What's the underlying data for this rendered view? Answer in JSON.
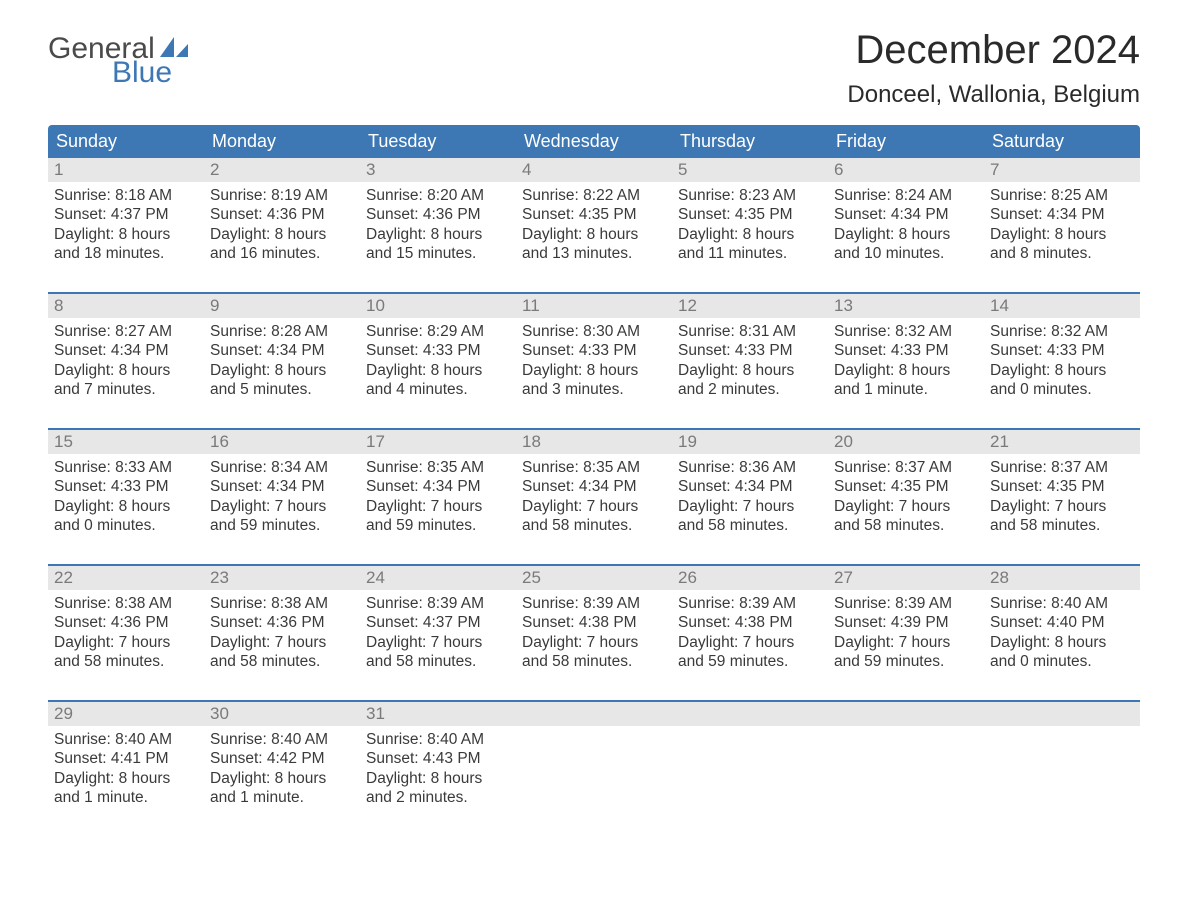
{
  "brand": {
    "word1": "General",
    "word2": "Blue",
    "logo_color": "#3d78b5"
  },
  "title": "December 2024",
  "location": "Donceel, Wallonia, Belgium",
  "colors": {
    "header_bg": "#3d78b5",
    "header_text": "#ffffff",
    "daynum_bg": "#e7e7e7",
    "daynum_text": "#7a7a7a",
    "week_border": "#3d78b5",
    "body_text": "#3a3a3a",
    "page_bg": "#ffffff"
  },
  "day_names": [
    "Sunday",
    "Monday",
    "Tuesday",
    "Wednesday",
    "Thursday",
    "Friday",
    "Saturday"
  ],
  "weeks": [
    [
      {
        "num": "1",
        "sunrise": "Sunrise: 8:18 AM",
        "sunset": "Sunset: 4:37 PM",
        "dl1": "Daylight: 8 hours",
        "dl2": "and 18 minutes."
      },
      {
        "num": "2",
        "sunrise": "Sunrise: 8:19 AM",
        "sunset": "Sunset: 4:36 PM",
        "dl1": "Daylight: 8 hours",
        "dl2": "and 16 minutes."
      },
      {
        "num": "3",
        "sunrise": "Sunrise: 8:20 AM",
        "sunset": "Sunset: 4:36 PM",
        "dl1": "Daylight: 8 hours",
        "dl2": "and 15 minutes."
      },
      {
        "num": "4",
        "sunrise": "Sunrise: 8:22 AM",
        "sunset": "Sunset: 4:35 PM",
        "dl1": "Daylight: 8 hours",
        "dl2": "and 13 minutes."
      },
      {
        "num": "5",
        "sunrise": "Sunrise: 8:23 AM",
        "sunset": "Sunset: 4:35 PM",
        "dl1": "Daylight: 8 hours",
        "dl2": "and 11 minutes."
      },
      {
        "num": "6",
        "sunrise": "Sunrise: 8:24 AM",
        "sunset": "Sunset: 4:34 PM",
        "dl1": "Daylight: 8 hours",
        "dl2": "and 10 minutes."
      },
      {
        "num": "7",
        "sunrise": "Sunrise: 8:25 AM",
        "sunset": "Sunset: 4:34 PM",
        "dl1": "Daylight: 8 hours",
        "dl2": "and 8 minutes."
      }
    ],
    [
      {
        "num": "8",
        "sunrise": "Sunrise: 8:27 AM",
        "sunset": "Sunset: 4:34 PM",
        "dl1": "Daylight: 8 hours",
        "dl2": "and 7 minutes."
      },
      {
        "num": "9",
        "sunrise": "Sunrise: 8:28 AM",
        "sunset": "Sunset: 4:34 PM",
        "dl1": "Daylight: 8 hours",
        "dl2": "and 5 minutes."
      },
      {
        "num": "10",
        "sunrise": "Sunrise: 8:29 AM",
        "sunset": "Sunset: 4:33 PM",
        "dl1": "Daylight: 8 hours",
        "dl2": "and 4 minutes."
      },
      {
        "num": "11",
        "sunrise": "Sunrise: 8:30 AM",
        "sunset": "Sunset: 4:33 PM",
        "dl1": "Daylight: 8 hours",
        "dl2": "and 3 minutes."
      },
      {
        "num": "12",
        "sunrise": "Sunrise: 8:31 AM",
        "sunset": "Sunset: 4:33 PM",
        "dl1": "Daylight: 8 hours",
        "dl2": "and 2 minutes."
      },
      {
        "num": "13",
        "sunrise": "Sunrise: 8:32 AM",
        "sunset": "Sunset: 4:33 PM",
        "dl1": "Daylight: 8 hours",
        "dl2": "and 1 minute."
      },
      {
        "num": "14",
        "sunrise": "Sunrise: 8:32 AM",
        "sunset": "Sunset: 4:33 PM",
        "dl1": "Daylight: 8 hours",
        "dl2": "and 0 minutes."
      }
    ],
    [
      {
        "num": "15",
        "sunrise": "Sunrise: 8:33 AM",
        "sunset": "Sunset: 4:33 PM",
        "dl1": "Daylight: 8 hours",
        "dl2": "and 0 minutes."
      },
      {
        "num": "16",
        "sunrise": "Sunrise: 8:34 AM",
        "sunset": "Sunset: 4:34 PM",
        "dl1": "Daylight: 7 hours",
        "dl2": "and 59 minutes."
      },
      {
        "num": "17",
        "sunrise": "Sunrise: 8:35 AM",
        "sunset": "Sunset: 4:34 PM",
        "dl1": "Daylight: 7 hours",
        "dl2": "and 59 minutes."
      },
      {
        "num": "18",
        "sunrise": "Sunrise: 8:35 AM",
        "sunset": "Sunset: 4:34 PM",
        "dl1": "Daylight: 7 hours",
        "dl2": "and 58 minutes."
      },
      {
        "num": "19",
        "sunrise": "Sunrise: 8:36 AM",
        "sunset": "Sunset: 4:34 PM",
        "dl1": "Daylight: 7 hours",
        "dl2": "and 58 minutes."
      },
      {
        "num": "20",
        "sunrise": "Sunrise: 8:37 AM",
        "sunset": "Sunset: 4:35 PM",
        "dl1": "Daylight: 7 hours",
        "dl2": "and 58 minutes."
      },
      {
        "num": "21",
        "sunrise": "Sunrise: 8:37 AM",
        "sunset": "Sunset: 4:35 PM",
        "dl1": "Daylight: 7 hours",
        "dl2": "and 58 minutes."
      }
    ],
    [
      {
        "num": "22",
        "sunrise": "Sunrise: 8:38 AM",
        "sunset": "Sunset: 4:36 PM",
        "dl1": "Daylight: 7 hours",
        "dl2": "and 58 minutes."
      },
      {
        "num": "23",
        "sunrise": "Sunrise: 8:38 AM",
        "sunset": "Sunset: 4:36 PM",
        "dl1": "Daylight: 7 hours",
        "dl2": "and 58 minutes."
      },
      {
        "num": "24",
        "sunrise": "Sunrise: 8:39 AM",
        "sunset": "Sunset: 4:37 PM",
        "dl1": "Daylight: 7 hours",
        "dl2": "and 58 minutes."
      },
      {
        "num": "25",
        "sunrise": "Sunrise: 8:39 AM",
        "sunset": "Sunset: 4:38 PM",
        "dl1": "Daylight: 7 hours",
        "dl2": "and 58 minutes."
      },
      {
        "num": "26",
        "sunrise": "Sunrise: 8:39 AM",
        "sunset": "Sunset: 4:38 PM",
        "dl1": "Daylight: 7 hours",
        "dl2": "and 59 minutes."
      },
      {
        "num": "27",
        "sunrise": "Sunrise: 8:39 AM",
        "sunset": "Sunset: 4:39 PM",
        "dl1": "Daylight: 7 hours",
        "dl2": "and 59 minutes."
      },
      {
        "num": "28",
        "sunrise": "Sunrise: 8:40 AM",
        "sunset": "Sunset: 4:40 PM",
        "dl1": "Daylight: 8 hours",
        "dl2": "and 0 minutes."
      }
    ],
    [
      {
        "num": "29",
        "sunrise": "Sunrise: 8:40 AM",
        "sunset": "Sunset: 4:41 PM",
        "dl1": "Daylight: 8 hours",
        "dl2": "and 1 minute."
      },
      {
        "num": "30",
        "sunrise": "Sunrise: 8:40 AM",
        "sunset": "Sunset: 4:42 PM",
        "dl1": "Daylight: 8 hours",
        "dl2": "and 1 minute."
      },
      {
        "num": "31",
        "sunrise": "Sunrise: 8:40 AM",
        "sunset": "Sunset: 4:43 PM",
        "dl1": "Daylight: 8 hours",
        "dl2": "and 2 minutes."
      },
      null,
      null,
      null,
      null
    ]
  ]
}
